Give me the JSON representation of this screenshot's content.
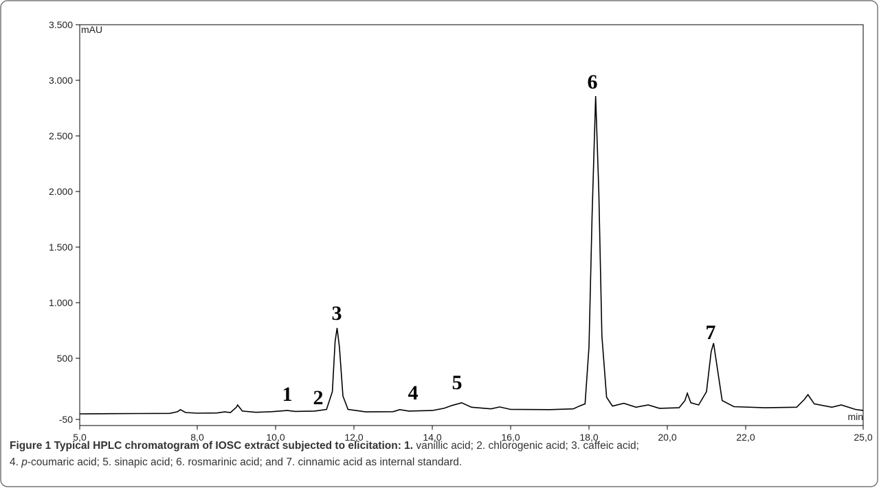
{
  "chart_data": {
    "type": "line",
    "y_unit_label": "mAU",
    "x_unit_label": "min",
    "xlim": [
      5,
      25
    ],
    "ylim": [
      -105,
      3500
    ],
    "xticks": [
      {
        "value": 5,
        "label": "5,0"
      },
      {
        "value": 8,
        "label": "8,0"
      },
      {
        "value": 10,
        "label": "10,0"
      },
      {
        "value": 12,
        "label": "12,0"
      },
      {
        "value": 14,
        "label": "14,0"
      },
      {
        "value": 16,
        "label": "16,0"
      },
      {
        "value": 18,
        "label": "18,0"
      },
      {
        "value": 20,
        "label": "20,0"
      },
      {
        "value": 22,
        "label": "22,0"
      },
      {
        "value": 25,
        "label": "25,0"
      }
    ],
    "yticks": [
      -50,
      500,
      {
        "value": 1000,
        "label": "1.000"
      },
      {
        "value": 1500,
        "label": "1.500"
      },
      {
        "value": 2000,
        "label": "2.000"
      },
      {
        "value": 2500,
        "label": "2.500"
      },
      {
        "value": 3000,
        "label": "3.000"
      },
      {
        "value": 3500,
        "label": "3.500"
      }
    ],
    "series": [
      {
        "color": "#000000",
        "x": [
          5.0,
          5.8,
          6.5,
          7.3,
          7.5,
          7.57,
          7.7,
          8.0,
          8.5,
          8.7,
          8.85,
          9.0,
          9.03,
          9.15,
          9.5,
          9.9,
          10.3,
          10.5,
          11.0,
          11.3,
          11.45,
          11.52,
          11.57,
          11.63,
          11.72,
          11.85,
          12.3,
          13.0,
          13.17,
          13.4,
          14.0,
          14.3,
          14.5,
          14.75,
          15.0,
          15.5,
          15.72,
          16.0,
          17.0,
          17.6,
          17.75,
          17.9,
          18.0,
          18.08,
          18.17,
          18.25,
          18.33,
          18.45,
          18.6,
          18.89,
          19.2,
          19.51,
          19.8,
          20.3,
          20.45,
          20.51,
          20.6,
          20.8,
          21.0,
          21.12,
          21.18,
          21.26,
          21.4,
          21.7,
          22.5,
          23.3,
          23.5,
          23.59,
          23.75,
          24.2,
          24.44,
          24.8,
          25.0
        ],
        "values": [
          0,
          2,
          3,
          4,
          20,
          38,
          12,
          6,
          8,
          18,
          12,
          60,
          80,
          25,
          14,
          20,
          30,
          22,
          25,
          40,
          200,
          650,
          772,
          600,
          160,
          40,
          18,
          20,
          38,
          25,
          30,
          50,
          75,
          100,
          60,
          45,
          62,
          40,
          38,
          45,
          70,
          90,
          600,
          1800,
          2858,
          2000,
          700,
          150,
          70,
          95,
          60,
          80,
          50,
          55,
          120,
          185,
          100,
          80,
          200,
          560,
          636,
          450,
          120,
          65,
          55,
          60,
          130,
          173,
          90,
          60,
          80,
          40,
          30
        ]
      }
    ],
    "peak_labels": [
      "1",
      "2",
      "3",
      "4",
      "5",
      "6",
      "7"
    ]
  },
  "caption": {
    "bold": "Figure 1 Typical HPLC chromatogram of IOSC extract subjected to elicitation: 1.",
    "line1": " vanillic acid; 2. chlorogenic acid; 3. caffeic acid;",
    "line2_start": "4. ",
    "line2_italic": "p",
    "line2_end": "-coumaric acid; 5. sinapic acid; 6. rosmarinic acid; and 7. cinnamic acid as internal standard."
  }
}
